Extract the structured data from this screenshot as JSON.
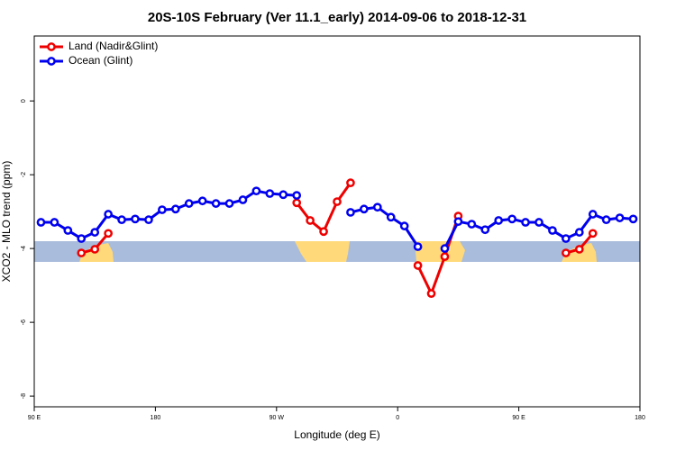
{
  "chart_data": {
    "type": "line",
    "title": "20S-10S February (Ver 11.1_early)   2014-09-06 to 2018-12-31",
    "x_label": "Longitude (deg E)",
    "y_label": "XCO2 - MLO trend (ppm)",
    "x": [
      95,
      105,
      115,
      125,
      135,
      145,
      155,
      165,
      175,
      185,
      195,
      205,
      215,
      225,
      235,
      245,
      255,
      265,
      275,
      285,
      295,
      305,
      315,
      325,
      335,
      345,
      355,
      365,
      375,
      385,
      395,
      405,
      415,
      425,
      435,
      445,
      455,
      465,
      475,
      485,
      495,
      505,
      515,
      525,
      535
    ],
    "series": [
      {
        "name": "Land (Nadir&Glint)",
        "color": "#ee0000",
        "values": [
          null,
          null,
          null,
          -4.12,
          -4.02,
          -3.59,
          null,
          null,
          null,
          null,
          null,
          null,
          null,
          null,
          null,
          null,
          null,
          null,
          null,
          -2.76,
          -3.24,
          -3.54,
          -2.73,
          -2.22,
          null,
          null,
          null,
          null,
          -4.46,
          -5.22,
          -4.22,
          -3.12,
          null,
          null,
          null,
          null,
          null,
          null,
          null,
          -4.12,
          -4.02,
          -3.59,
          null,
          null,
          null
        ]
      },
      {
        "name": "Ocean (Glint)",
        "color": "#0000ee",
        "values": [
          -3.29,
          -3.29,
          -3.51,
          -3.73,
          -3.56,
          -3.07,
          -3.22,
          -3.2,
          -3.22,
          -2.95,
          -2.93,
          -2.78,
          -2.71,
          -2.78,
          -2.78,
          -2.68,
          -2.44,
          -2.51,
          -2.54,
          -2.56,
          null,
          null,
          null,
          -3.02,
          -2.93,
          -2.88,
          -3.15,
          -3.39,
          -3.95,
          null,
          -4.0,
          -3.27,
          -3.34,
          -3.49,
          -3.24,
          -3.2,
          -3.29,
          -3.29,
          -3.51,
          -3.73,
          -3.56,
          -3.07,
          -3.22,
          -3.17,
          -3.2
        ]
      }
    ],
    "xlim": [
      90,
      540
    ],
    "xticks": [
      {
        "value": 90,
        "label": "90 E"
      },
      180,
      {
        "value": 270,
        "label": "90 W"
      },
      {
        "value": 360,
        "label": "0"
      },
      {
        "value": 450,
        "label": "90 E"
      },
      {
        "value": 540,
        "label": "180"
      }
    ],
    "ylim": [
      -8.29,
      1.76
    ],
    "yticks": [
      -8,
      -6,
      -4,
      -2,
      0
    ],
    "legend": "top-left"
  }
}
